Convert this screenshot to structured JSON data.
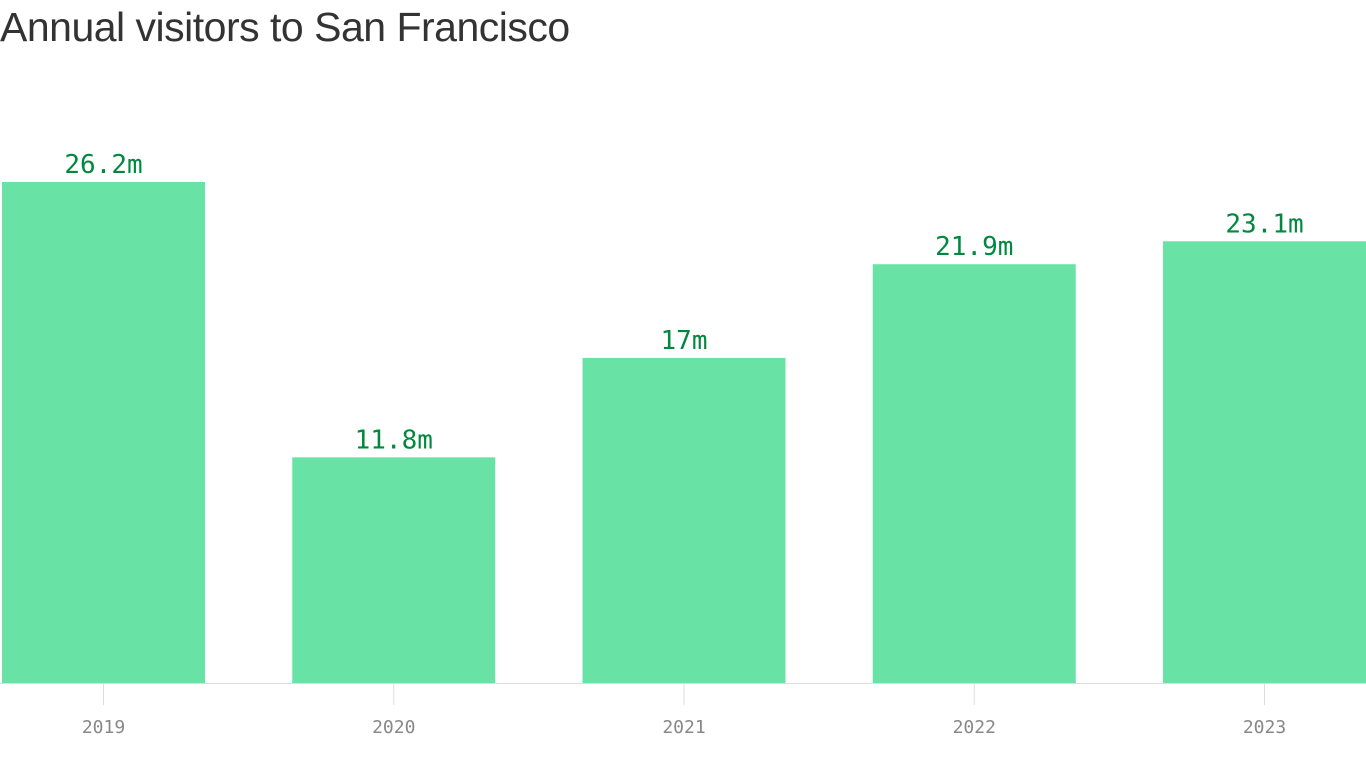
{
  "chart_data": {
    "type": "bar",
    "title": "Annual visitors to San Francisco",
    "categories": [
      "2019",
      "2020",
      "2021",
      "2022",
      "2023"
    ],
    "values": [
      26.2,
      11.8,
      17,
      21.9,
      23.1
    ],
    "value_labels": [
      "26.2m",
      "11.8m",
      "17m",
      "21.9m",
      "23.1m"
    ],
    "unit": "millions",
    "xlabel": "",
    "ylabel": "",
    "ylim": [
      0,
      26.2
    ],
    "grid": false,
    "legend": "none"
  },
  "colors": {
    "bar": "#68e2a5",
    "value_label": "#00893e",
    "title": "#333333",
    "axis": "#dddddd",
    "tick_label": "#888888"
  }
}
